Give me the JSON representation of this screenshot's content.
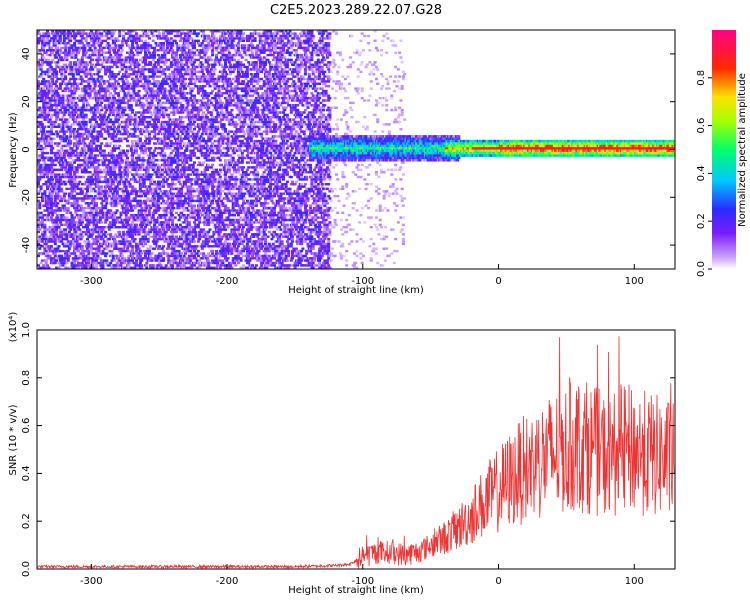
{
  "title": "C2E5.2023.289.22.07.G28",
  "colors": {
    "snr_line": "#ee3333",
    "axis": "#000000",
    "background": "#ffffff"
  },
  "chart_data": [
    {
      "type": "heatmap",
      "title": "C2E5.2023.289.22.07.G28",
      "xlabel": "Height of straight line (km)",
      "ylabel": "Frequency (Hz)",
      "xlim": [
        -340,
        130
      ],
      "ylim": [
        -50,
        50
      ],
      "x_ticks": [
        -300,
        -200,
        -100,
        0,
        100
      ],
      "x_tick_labels": [
        "-300",
        "-200",
        "-100",
        "0",
        "100"
      ],
      "y_ticks": [
        -40,
        -20,
        0,
        20,
        40
      ],
      "y_tick_labels": [
        "-40",
        "-20",
        "0",
        "20",
        "40"
      ],
      "colorbar": {
        "label": "Normalized spectral amplitude",
        "range": [
          0,
          1
        ],
        "ticks": [
          0.0,
          0.2,
          0.4,
          0.6,
          0.8
        ],
        "tick_labels": [
          "0.0",
          "0.2",
          "0.4",
          "0.6",
          "0.8"
        ],
        "colormap": "rainbow (white-violet-blue-cyan-green-yellow-red-magenta)"
      },
      "features": [
        {
          "region": "broadband noise",
          "x_range": [
            -340,
            -125
          ],
          "freq_range": [
            -50,
            50
          ],
          "amplitude": 0.15
        },
        {
          "region": "sparse noise",
          "x_range": [
            -125,
            -70
          ],
          "freq_range": [
            -50,
            50
          ],
          "amplitude": 0.05
        },
        {
          "region": "signal band",
          "x_range": [
            -140,
            130
          ],
          "freq_center": 0,
          "freq_halfwidth": 3,
          "amplitude_range": [
            0.4,
            0.95
          ]
        }
      ],
      "grid": false
    },
    {
      "type": "line",
      "xlabel": "Height of straight line (km)",
      "ylabel": "SNR (10 * v/v)",
      "y_multiplier": "(x10⁴)",
      "xlim": [
        -340,
        130
      ],
      "ylim": [
        0,
        1.0
      ],
      "x_ticks": [
        -300,
        -200,
        -100,
        0,
        100
      ],
      "x_tick_labels": [
        "-300",
        "-200",
        "-100",
        "0",
        "100"
      ],
      "y_ticks": [
        0.0,
        0.2,
        0.4,
        0.6,
        0.8,
        1.0
      ],
      "y_tick_labels": [
        "0.0",
        "0.2",
        "0.4",
        "0.6",
        "0.8",
        "1.0"
      ],
      "series": [
        {
          "x": [
            -340,
            -300,
            -250,
            -200,
            -150,
            -120,
            -110,
            -100,
            -90,
            -80,
            -70,
            -60,
            -50,
            -40,
            -30,
            -20,
            -10,
            0,
            10,
            20,
            30,
            40,
            50,
            60,
            70,
            80,
            90,
            100,
            110,
            120,
            130
          ],
          "values": [
            0.01,
            0.01,
            0.01,
            0.01,
            0.01,
            0.015,
            0.02,
            0.05,
            0.07,
            0.07,
            0.06,
            0.07,
            0.1,
            0.13,
            0.17,
            0.22,
            0.28,
            0.33,
            0.38,
            0.42,
            0.45,
            0.48,
            0.5,
            0.52,
            0.5,
            0.47,
            0.5,
            0.5,
            0.48,
            0.47,
            0.45
          ]
        }
      ],
      "grid": false
    }
  ]
}
